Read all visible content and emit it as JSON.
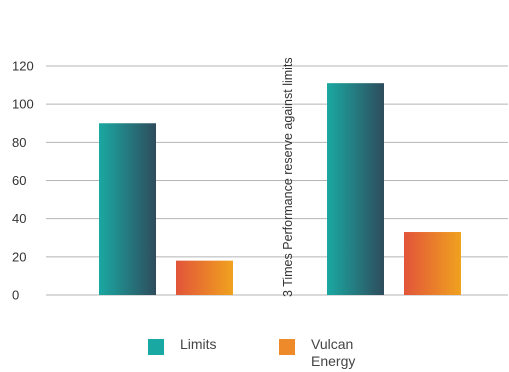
{
  "chart_data": {
    "type": "bar",
    "categories": [
      "",
      ""
    ],
    "series": [
      {
        "name": "Limits",
        "values": [
          90,
          111
        ],
        "color_start": "#1aa8a2",
        "color_end": "#2e4c5c"
      },
      {
        "name": "Vulcan Energy",
        "values": [
          18,
          33
        ],
        "color_start": "#e2543a",
        "color_end": "#f0a21f"
      }
    ],
    "ylim": [
      0,
      120
    ],
    "yticks": [
      0,
      20,
      40,
      60,
      80,
      100,
      120
    ],
    "grid": true,
    "legend_position": "bottom",
    "annotation": "3 Times Performance reserve against limits",
    "title": "",
    "xlabel": "",
    "ylabel": ""
  },
  "legend": {
    "limits_label": "Limits",
    "vulcan_label": "Vulcan Energy"
  },
  "colors": {
    "limits_swatch": "#1aa8a2",
    "vulcan_swatch": "#ef8a2a",
    "gridline": "#b5b5b5"
  }
}
